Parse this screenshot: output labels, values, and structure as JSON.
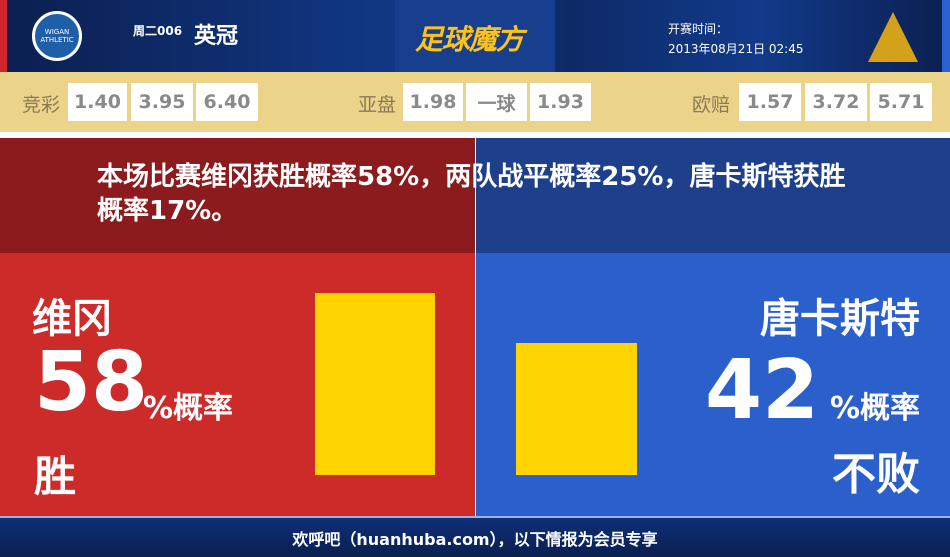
{
  "header": {
    "home_logo_text": "WIGAN ATHLETIC",
    "match_no": "周二006",
    "league": "英冠",
    "brand": "足球魔方",
    "kickoff_label": "开赛时间：",
    "kickoff_time": "2013年08月21日 02:45",
    "away_logo": "doncaster-crest"
  },
  "odds": {
    "jingcai": {
      "label": "竞彩",
      "values": [
        "1.40",
        "3.95",
        "6.40"
      ]
    },
    "asian": {
      "label": "亚盘",
      "values": [
        "1.98",
        "一球",
        "1.93"
      ]
    },
    "euro": {
      "label": "欧赔",
      "values": [
        "1.57",
        "3.72",
        "5.71"
      ]
    }
  },
  "summary": "本场比赛维冈获胜概率58%，两队战平概率25%，唐卡斯特获胜概率17%。",
  "home": {
    "name": "维冈",
    "percent": "58",
    "suffix": "%概率",
    "result": "胜",
    "color": "#cd2a2a"
  },
  "away": {
    "name": "唐卡斯特",
    "percent": "42",
    "suffix": "%概率",
    "result": "不败",
    "color": "#2a5fcc"
  },
  "bar_color": "#ffd400",
  "footer": "欢呼吧（huanhuba.com），以下情报为会员专享"
}
